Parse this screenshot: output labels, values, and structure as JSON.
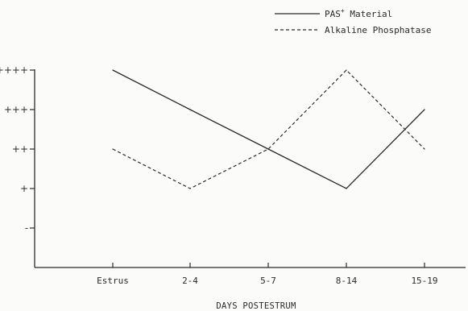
{
  "chart_data": {
    "type": "line",
    "categories": [
      "Estrus",
      "2-4",
      "5-7",
      "8-14",
      "15-19"
    ],
    "y_tick_labels": [
      "-",
      "+",
      "++",
      "+++",
      "++++"
    ],
    "y_levels": [
      0,
      1,
      2,
      3,
      4
    ],
    "ylim": [
      -1.05,
      4.05
    ],
    "xlabel": "DAYS POSTESTRUM",
    "ylabel": "",
    "title": "",
    "grid": false,
    "legend_position": "top-right",
    "series": [
      {
        "name_main": "PAS",
        "name_sup": "+",
        "name_rest": " Material",
        "name": "PAS+ Material",
        "style": "solid",
        "values": [
          4,
          3,
          2,
          1,
          3
        ]
      },
      {
        "name": "Alkaline Phosphatase",
        "style": "dashed",
        "values": [
          2,
          1,
          2,
          4,
          2
        ]
      }
    ],
    "colors": {
      "line": "#2b2b2b",
      "axis": "#2b2b2b"
    }
  }
}
